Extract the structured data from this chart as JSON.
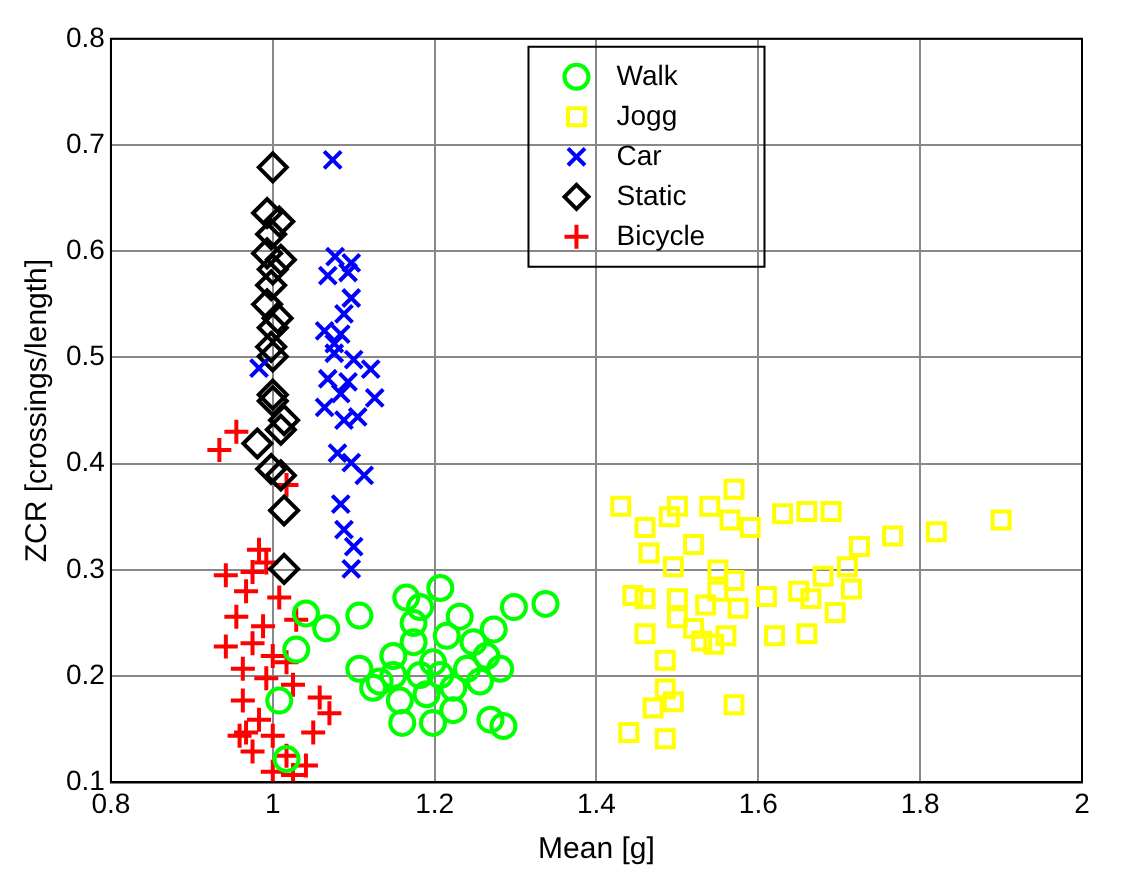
{
  "chart_data": {
    "type": "scatter",
    "xlabel": "Mean [g]",
    "ylabel": "ZCR [crossings/length]",
    "xlim": [
      0.8,
      2
    ],
    "xticks": [
      0.8,
      1,
      1.2,
      1.4,
      1.6,
      1.8,
      2
    ],
    "ylim": [
      0.1,
      0.8
    ],
    "yticks": [
      0.1,
      0.2,
      0.3,
      0.4,
      0.5,
      0.6,
      0.7,
      0.8
    ],
    "grid": true,
    "legend": "top",
    "series": [
      {
        "name": "Walk",
        "color": "#00ff00",
        "marker": "circle",
        "x": [
          1.041,
          1.066,
          1.029,
          1.107,
          1.008,
          1.017,
          1.165,
          1.207,
          1.182,
          1.231,
          1.298,
          1.337,
          1.107,
          1.132,
          1.149,
          1.174,
          1.198,
          1.248,
          1.273,
          1.281,
          1.256,
          1.223,
          1.19,
          1.157,
          1.124,
          1.16,
          1.198,
          1.223,
          1.269,
          1.285,
          1.182,
          1.207,
          1.24,
          1.264,
          1.149,
          1.215,
          1.174
        ],
        "values": [
          0.259,
          0.245,
          0.225,
          0.257,
          0.177,
          0.122,
          0.274,
          0.283,
          0.265,
          0.256,
          0.265,
          0.268,
          0.207,
          0.195,
          0.219,
          0.232,
          0.213,
          0.232,
          0.244,
          0.207,
          0.195,
          0.189,
          0.183,
          0.177,
          0.189,
          0.156,
          0.156,
          0.168,
          0.159,
          0.153,
          0.201,
          0.201,
          0.207,
          0.219,
          0.201,
          0.238,
          0.25
        ]
      },
      {
        "name": "Jogg",
        "color": "#ffff00",
        "marker": "square",
        "x": [
          1.43,
          1.5,
          1.54,
          1.57,
          1.46,
          1.49,
          1.565,
          1.59,
          1.63,
          1.66,
          1.69,
          1.725,
          1.766,
          1.82,
          1.9,
          1.465,
          1.52,
          1.495,
          1.55,
          1.57,
          1.71,
          1.68,
          1.445,
          1.46,
          1.5,
          1.535,
          1.575,
          1.61,
          1.65,
          1.665,
          1.715,
          1.695,
          1.5,
          1.53,
          1.545,
          1.56,
          1.46,
          1.62,
          1.66,
          1.485,
          1.485,
          1.47,
          1.495,
          1.57,
          1.44,
          1.485,
          1.52,
          1.55
        ],
        "values": [
          0.36,
          0.36,
          0.36,
          0.376,
          0.34,
          0.35,
          0.347,
          0.34,
          0.353,
          0.355,
          0.355,
          0.322,
          0.332,
          0.336,
          0.347,
          0.316,
          0.324,
          0.303,
          0.3,
          0.29,
          0.303,
          0.294,
          0.276,
          0.273,
          0.273,
          0.267,
          0.264,
          0.275,
          0.28,
          0.273,
          0.282,
          0.26,
          0.255,
          0.233,
          0.23,
          0.238,
          0.24,
          0.238,
          0.24,
          0.215,
          0.188,
          0.17,
          0.176,
          0.173,
          0.147,
          0.141,
          0.245,
          0.28
        ]
      },
      {
        "name": "Car",
        "color": "#0000ff",
        "marker": "x",
        "x": [
          1.074,
          1.077,
          1.097,
          1.068,
          1.093,
          1.097,
          1.088,
          1.064,
          1.084,
          1.121,
          1.076,
          1.1,
          1.068,
          1.093,
          1.126,
          1.064,
          1.088,
          1.105,
          0.983,
          1.08,
          1.097,
          1.113,
          1.084,
          1.088,
          1.1,
          1.097,
          1.084,
          1.076
        ],
        "values": [
          0.686,
          0.595,
          0.589,
          0.577,
          0.58,
          0.556,
          0.541,
          0.525,
          0.522,
          0.489,
          0.504,
          0.498,
          0.48,
          0.477,
          0.462,
          0.453,
          0.441,
          0.444,
          0.49,
          0.41,
          0.401,
          0.389,
          0.362,
          0.338,
          0.322,
          0.301,
          0.466,
          0.513
        ]
      },
      {
        "name": "Static",
        "color": "#000000",
        "marker": "diamond",
        "x": [
          1.0,
          0.993,
          1.008,
          0.998,
          0.993,
          1.0,
          0.998,
          0.993,
          1.0,
          0.998,
          1.0,
          1.0,
          1.0,
          1.014,
          1.01,
          0.981,
          0.998,
          1.01,
          1.014,
          1.014,
          1.01,
          1.006
        ],
        "values": [
          0.679,
          0.636,
          0.628,
          0.616,
          0.598,
          0.583,
          0.568,
          0.55,
          0.528,
          0.51,
          0.501,
          0.465,
          0.459,
          0.441,
          0.432,
          0.419,
          0.395,
          0.389,
          0.356,
          0.301,
          0.592,
          0.537
        ]
      },
      {
        "name": "Bicycle",
        "color": "#ff0000",
        "marker": "cross",
        "x": [
          0.955,
          0.934,
          1.017,
          0.983,
          0.942,
          0.975,
          0.992,
          0.967,
          1.008,
          0.955,
          0.988,
          1.029,
          0.942,
          0.975,
          1.0,
          0.963,
          1.017,
          0.992,
          1.025,
          0.963,
          1.058,
          1.07,
          0.967,
          1.0,
          1.05,
          0.975,
          1.017,
          1.041,
          1.0,
          1.025,
          0.983,
          0.959
        ],
        "values": [
          0.43,
          0.413,
          0.38,
          0.319,
          0.295,
          0.298,
          0.307,
          0.28,
          0.274,
          0.256,
          0.247,
          0.253,
          0.228,
          0.231,
          0.219,
          0.207,
          0.213,
          0.198,
          0.192,
          0.177,
          0.18,
          0.165,
          0.147,
          0.144,
          0.147,
          0.129,
          0.125,
          0.116,
          0.11,
          0.107,
          0.159,
          0.144
        ]
      }
    ]
  }
}
